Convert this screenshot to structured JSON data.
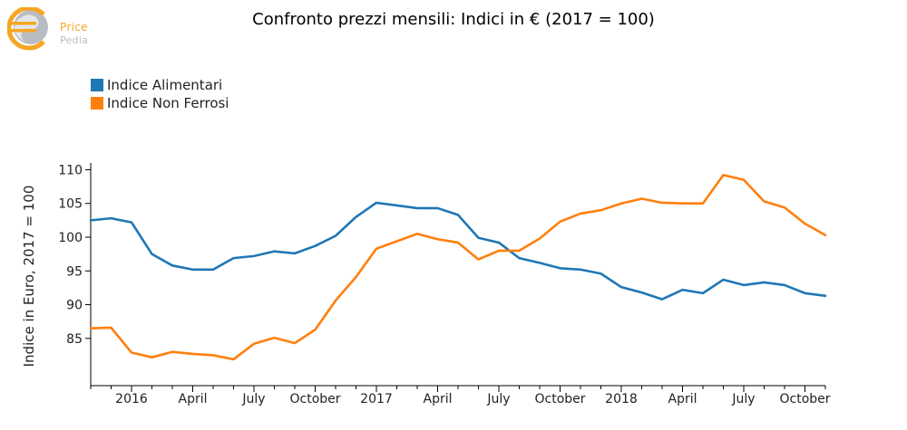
{
  "title": "Confronto prezzi mensili: Indici in € (2017 = 100)",
  "logo": {
    "line1": "Price",
    "line2": "Pedia"
  },
  "chart_data": {
    "type": "line",
    "title": "Confronto prezzi mensili: Indici in € (2017 = 100)",
    "xlabel": "",
    "ylabel": "Indice in Euro, 2017 = 100",
    "ylim": [
      78,
      111
    ],
    "yticks": [
      85,
      90,
      95,
      100,
      105,
      110
    ],
    "grid": false,
    "legend_position": "top-left",
    "x": [
      "2015-11",
      "2015-12",
      "2016-01",
      "2016-02",
      "2016-03",
      "2016-04",
      "2016-05",
      "2016-06",
      "2016-07",
      "2016-08",
      "2016-09",
      "2016-10",
      "2016-11",
      "2016-12",
      "2017-01",
      "2017-02",
      "2017-03",
      "2017-04",
      "2017-05",
      "2017-06",
      "2017-07",
      "2017-08",
      "2017-09",
      "2017-10",
      "2017-11",
      "2017-12",
      "2018-01",
      "2018-02",
      "2018-03",
      "2018-04",
      "2018-05",
      "2018-06",
      "2018-07",
      "2018-08",
      "2018-09",
      "2018-10",
      "2018-11"
    ],
    "xticks": [
      {
        "x": "2016-01",
        "label": "2016"
      },
      {
        "x": "2016-04",
        "label": "April"
      },
      {
        "x": "2016-07",
        "label": "July"
      },
      {
        "x": "2016-10",
        "label": "October"
      },
      {
        "x": "2017-01",
        "label": "2017"
      },
      {
        "x": "2017-04",
        "label": "April"
      },
      {
        "x": "2017-07",
        "label": "July"
      },
      {
        "x": "2017-10",
        "label": "October"
      },
      {
        "x": "2018-01",
        "label": "2018"
      },
      {
        "x": "2018-04",
        "label": "April"
      },
      {
        "x": "2018-07",
        "label": "July"
      },
      {
        "x": "2018-10",
        "label": "October"
      }
    ],
    "series": [
      {
        "name": "Indice Alimentari",
        "color": "#1f77b4",
        "values": [
          102.5,
          102.8,
          102.2,
          97.5,
          95.8,
          95.2,
          95.2,
          96.9,
          97.2,
          97.9,
          97.6,
          98.7,
          100.2,
          103.0,
          105.1,
          104.7,
          104.3,
          104.3,
          103.3,
          99.9,
          99.2,
          96.9,
          96.2,
          95.4,
          95.2,
          94.6,
          92.6,
          91.8,
          90.8,
          92.2,
          91.7,
          93.7,
          92.9,
          93.3,
          92.9,
          91.7,
          91.3
        ]
      },
      {
        "name": "Indice Non Ferrosi",
        "color": "#ff7f0e",
        "values": [
          86.5,
          86.6,
          82.9,
          82.2,
          83.0,
          82.7,
          82.5,
          81.9,
          84.2,
          85.1,
          84.3,
          86.3,
          90.6,
          94.1,
          98.3,
          99.4,
          100.5,
          99.7,
          99.2,
          96.7,
          98.0,
          98.0,
          99.8,
          102.3,
          103.5,
          104.0,
          105.0,
          105.7,
          105.1,
          105.0,
          105.0,
          109.2,
          108.5,
          105.3,
          104.4,
          102.0,
          100.3
        ]
      }
    ]
  }
}
